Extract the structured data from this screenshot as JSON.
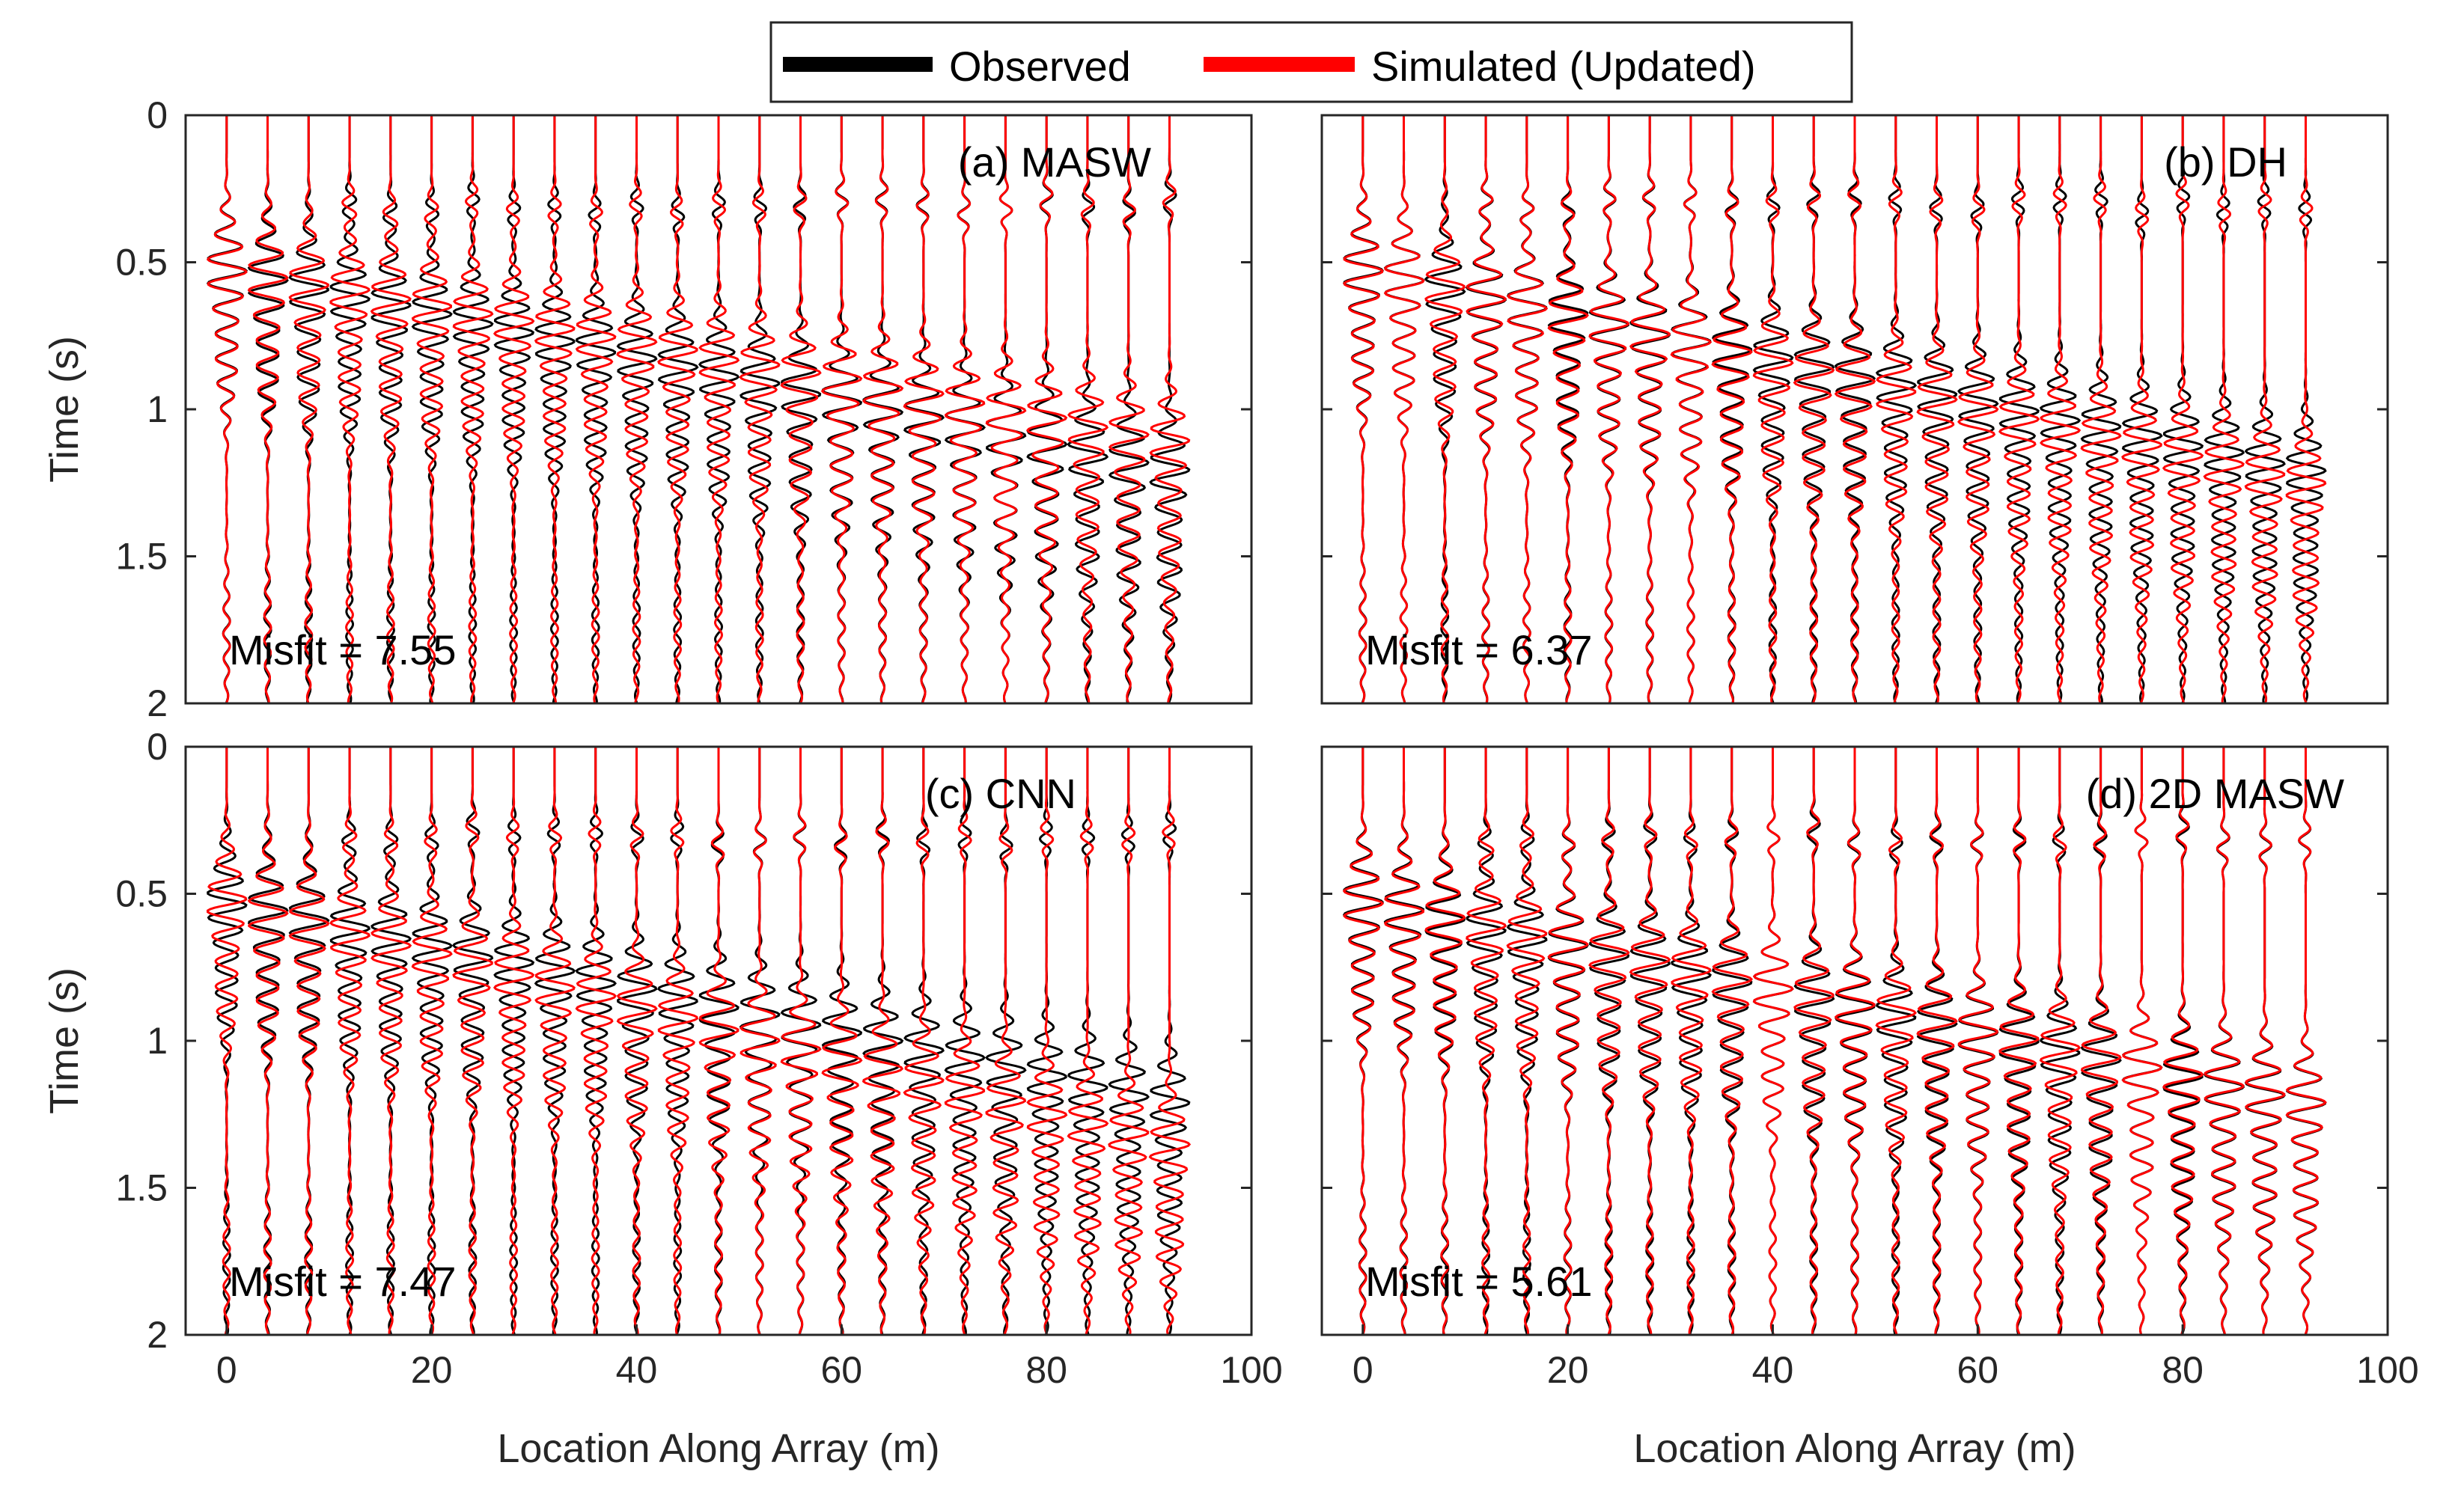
{
  "legend": {
    "observed_label": "Observed",
    "simulated_label": "Simulated (Updated)"
  },
  "colors": {
    "observed": "#000000",
    "simulated": "#ff0000",
    "axis": "#262626"
  },
  "chart_data": [
    {
      "type": "line",
      "panel": "a",
      "title": "(a) MASW",
      "misfit_label": "Misfit = 7.55",
      "xlabel": "",
      "ylabel": "Time (s)",
      "xlim": [
        -4,
        100
      ],
      "ylim": [
        2,
        0
      ],
      "xticks": [],
      "yticks": [
        "0",
        "0.5",
        "1",
        "1.5",
        "2"
      ],
      "trace_locations": [
        0,
        4,
        8,
        12,
        16,
        20,
        24,
        28,
        32,
        36,
        40,
        44,
        48,
        52,
        56,
        60,
        64,
        68,
        72,
        76,
        80,
        84,
        88,
        92
      ],
      "series": [
        {
          "name": "Observed",
          "arrival_start_s": 0.52,
          "arrival_end_s": 1.2,
          "period_s": 0.085
        },
        {
          "name": "Simulated (Updated)",
          "arrival_start_s": 0.52,
          "arrival_end_s": 1.1,
          "period_s": 0.085
        }
      ]
    },
    {
      "type": "line",
      "panel": "b",
      "title": "(b) DH",
      "misfit_label": "Misfit = 6.37",
      "xlabel": "",
      "ylabel": "",
      "xlim": [
        -4,
        100
      ],
      "ylim": [
        2,
        0
      ],
      "xticks": [],
      "yticks": [],
      "trace_locations": [
        0,
        4,
        8,
        12,
        16,
        20,
        24,
        28,
        32,
        36,
        40,
        44,
        48,
        52,
        56,
        60,
        64,
        68,
        72,
        76,
        80,
        84,
        88,
        92
      ],
      "series": [
        {
          "name": "Observed",
          "arrival_start_s": 0.52,
          "arrival_end_s": 1.2,
          "period_s": 0.085
        },
        {
          "name": "Simulated (Updated)",
          "arrival_start_s": 0.52,
          "arrival_end_s": 1.25,
          "period_s": 0.085
        }
      ]
    },
    {
      "type": "line",
      "panel": "c",
      "title": "(c) CNN",
      "misfit_label": "Misfit = 7.47",
      "xlabel": "Location Along Array (m)",
      "ylabel": "Time (s)",
      "xlim": [
        -4,
        100
      ],
      "ylim": [
        2,
        0
      ],
      "xticks": [
        "0",
        "20",
        "40",
        "60",
        "80",
        "100"
      ],
      "yticks": [
        "0",
        "0.5",
        "1",
        "1.5",
        "2"
      ],
      "trace_locations": [
        0,
        4,
        8,
        12,
        16,
        20,
        24,
        28,
        32,
        36,
        40,
        44,
        48,
        52,
        56,
        60,
        64,
        68,
        72,
        76,
        80,
        84,
        88,
        92
      ],
      "series": [
        {
          "name": "Observed",
          "arrival_start_s": 0.52,
          "arrival_end_s": 1.2,
          "period_s": 0.085
        },
        {
          "name": "Simulated (Updated)",
          "arrival_start_s": 0.52,
          "arrival_end_s": 1.35,
          "period_s": 0.085
        }
      ]
    },
    {
      "type": "line",
      "panel": "d",
      "title": "(d) 2D MASW",
      "misfit_label": "Misfit = 5.61",
      "xlabel": "Location Along Array (m)",
      "ylabel": "",
      "xlim": [
        -4,
        100
      ],
      "ylim": [
        2,
        0
      ],
      "xticks": [
        "0",
        "20",
        "40",
        "60",
        "80",
        "100"
      ],
      "yticks": [],
      "trace_locations": [
        0,
        4,
        8,
        12,
        16,
        20,
        24,
        28,
        32,
        36,
        40,
        44,
        48,
        52,
        56,
        60,
        64,
        68,
        72,
        76,
        80,
        84,
        88,
        92
      ],
      "series": [
        {
          "name": "Observed",
          "arrival_start_s": 0.52,
          "arrival_end_s": 1.2,
          "period_s": 0.085
        },
        {
          "name": "Simulated (Updated)",
          "arrival_start_s": 0.52,
          "arrival_end_s": 1.2,
          "period_s": 0.085
        }
      ]
    }
  ]
}
